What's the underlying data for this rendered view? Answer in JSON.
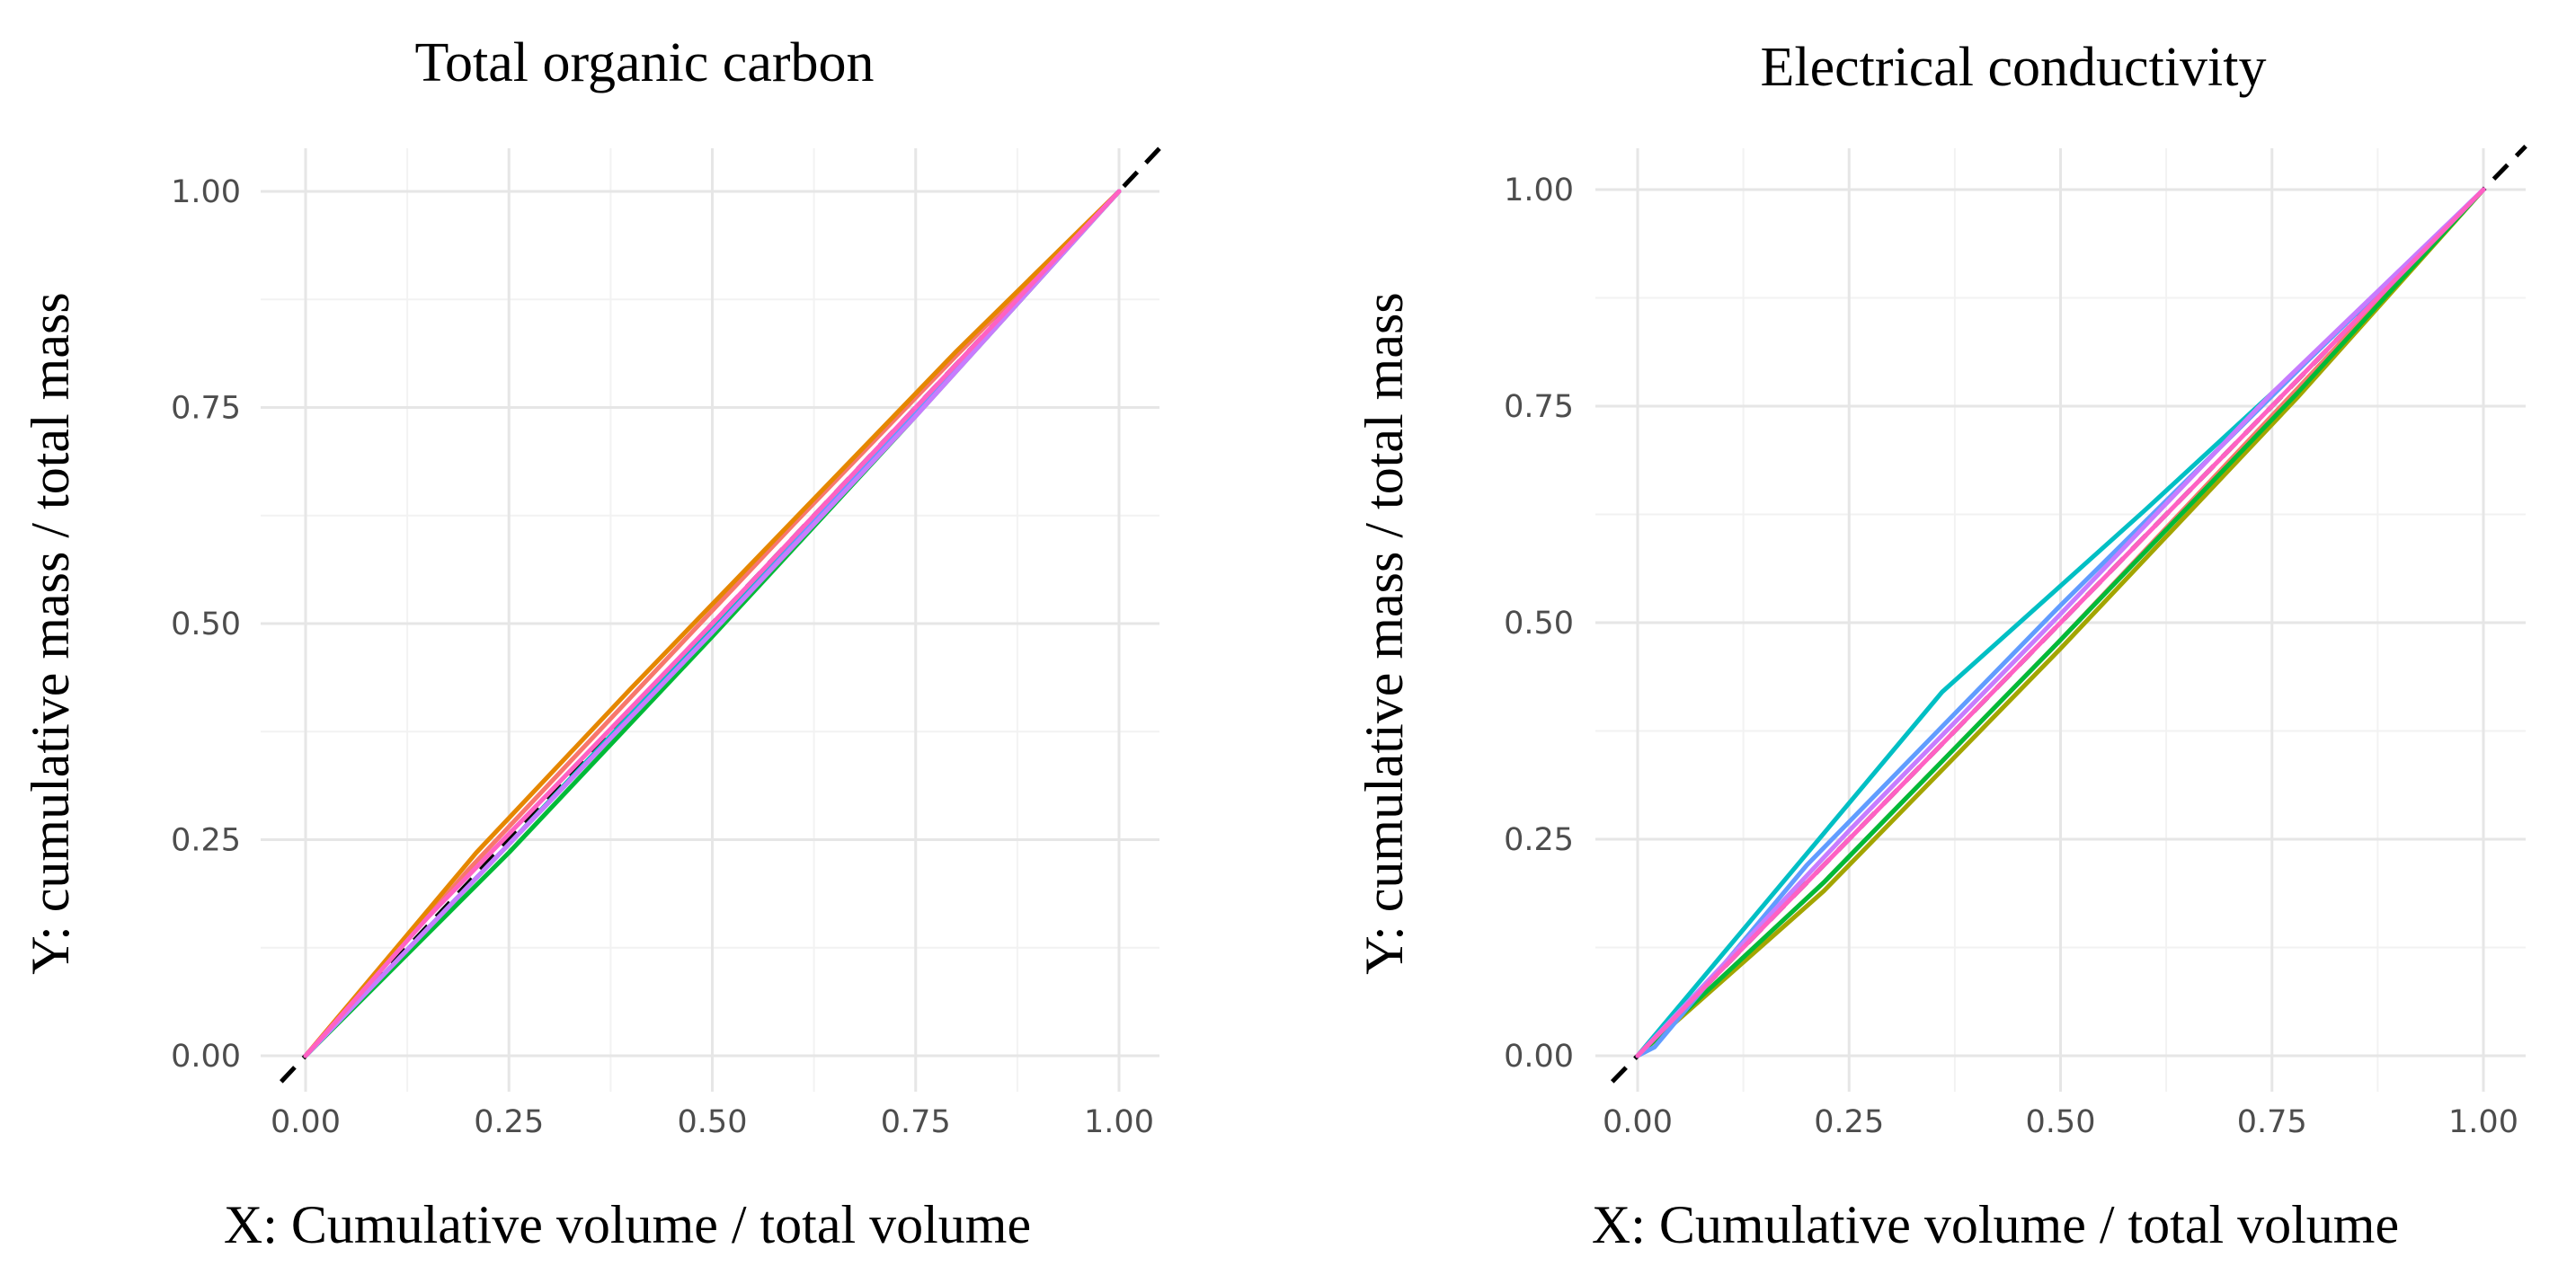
{
  "chart_data": [
    {
      "type": "line",
      "title": "Total organic carbon",
      "xlabel": "X: Cumulative volume / total volume",
      "ylabel": "Y: cumulative mass / total mass",
      "xlim": [
        0,
        1
      ],
      "ylim": [
        0,
        1
      ],
      "grid": true,
      "xticks": [
        "0.00",
        "0.25",
        "0.50",
        "0.75",
        "1.00"
      ],
      "yticks": [
        "0.00",
        "0.25",
        "0.50",
        "0.75",
        "1.00"
      ],
      "reference_line": {
        "x": [
          -0.03,
          1.05
        ],
        "y": [
          -0.03,
          1.05
        ],
        "style": "dashed",
        "color": "#000000"
      },
      "series": [
        {
          "color": "#F8766D",
          "x": [
            0,
            0.2,
            0.4,
            0.6,
            0.8,
            1.0
          ],
          "y": [
            0,
            0.215,
            0.415,
            0.615,
            0.81,
            1.0
          ]
        },
        {
          "color": "#E58700",
          "x": [
            0,
            0.21,
            0.4,
            0.6,
            0.8,
            1.0
          ],
          "y": [
            0,
            0.235,
            0.425,
            0.62,
            0.815,
            1.0
          ]
        },
        {
          "color": "#A3A500",
          "x": [
            0,
            0.25,
            0.5,
            0.75,
            1.0
          ],
          "y": [
            0,
            0.245,
            0.495,
            0.745,
            1.0
          ]
        },
        {
          "color": "#00BA38",
          "x": [
            0,
            0.25,
            0.5,
            0.75,
            1.0
          ],
          "y": [
            0,
            0.235,
            0.485,
            0.74,
            1.0
          ]
        },
        {
          "color": "#00BFC4",
          "x": [
            0,
            0.25,
            0.5,
            0.75,
            1.0
          ],
          "y": [
            0,
            0.245,
            0.495,
            0.745,
            1.0
          ]
        },
        {
          "color": "#619CFF",
          "x": [
            0,
            0.25,
            0.5,
            0.75,
            1.0
          ],
          "y": [
            0,
            0.245,
            0.49,
            0.745,
            1.0
          ]
        },
        {
          "color": "#C77CFF",
          "x": [
            0,
            0.25,
            0.5,
            0.75,
            1.0
          ],
          "y": [
            0,
            0.245,
            0.49,
            0.74,
            1.0
          ]
        },
        {
          "color": "#FF61C3",
          "x": [
            0,
            0.15,
            0.3,
            0.5,
            0.7,
            1.0
          ],
          "y": [
            0,
            0.16,
            0.305,
            0.5,
            0.7,
            1.0
          ]
        }
      ]
    },
    {
      "type": "line",
      "title": "Electrical conductivity",
      "xlabel": "X: Cumulative volume / total volume",
      "ylabel": "Y: cumulative mass / total mass",
      "xlim": [
        0,
        1
      ],
      "ylim": [
        0,
        1
      ],
      "grid": true,
      "xticks": [
        "0.00",
        "0.25",
        "0.50",
        "0.75",
        "1.00"
      ],
      "yticks": [
        "0.00",
        "0.25",
        "0.50",
        "0.75",
        "1.00"
      ],
      "reference_line": {
        "x": [
          -0.03,
          1.05
        ],
        "y": [
          -0.03,
          1.05
        ],
        "style": "dashed",
        "color": "#000000"
      },
      "series": [
        {
          "color": "#F8766D",
          "x": [
            0,
            0.22,
            0.5,
            0.78,
            1.0
          ],
          "y": [
            0,
            0.2,
            0.48,
            0.77,
            1.0
          ]
        },
        {
          "color": "#A3A500",
          "x": [
            0,
            0.22,
            0.5,
            0.78,
            1.0
          ],
          "y": [
            0,
            0.19,
            0.47,
            0.76,
            1.0
          ]
        },
        {
          "color": "#00BA38",
          "x": [
            0,
            0.22,
            0.5,
            0.78,
            1.0
          ],
          "y": [
            0,
            0.2,
            0.48,
            0.765,
            1.0
          ]
        },
        {
          "color": "#00BFC4",
          "x": [
            0,
            0.36,
            0.6,
            0.8,
            1.0
          ],
          "y": [
            0,
            0.42,
            0.63,
            0.81,
            1.0
          ]
        },
        {
          "color": "#619CFF",
          "x": [
            0,
            0.02,
            0.2,
            0.5,
            0.8,
            1.0
          ],
          "y": [
            0,
            0.01,
            0.22,
            0.52,
            0.81,
            1.0
          ]
        },
        {
          "color": "#C77CFF",
          "x": [
            0,
            0.25,
            0.5,
            0.75,
            1.0
          ],
          "y": [
            0,
            0.26,
            0.51,
            0.765,
            1.0
          ]
        },
        {
          "color": "#FF61C3",
          "x": [
            0,
            0.2,
            0.4,
            0.6,
            0.8,
            1.0
          ],
          "y": [
            0,
            0.2,
            0.4,
            0.6,
            0.8,
            1.0
          ]
        }
      ]
    }
  ]
}
